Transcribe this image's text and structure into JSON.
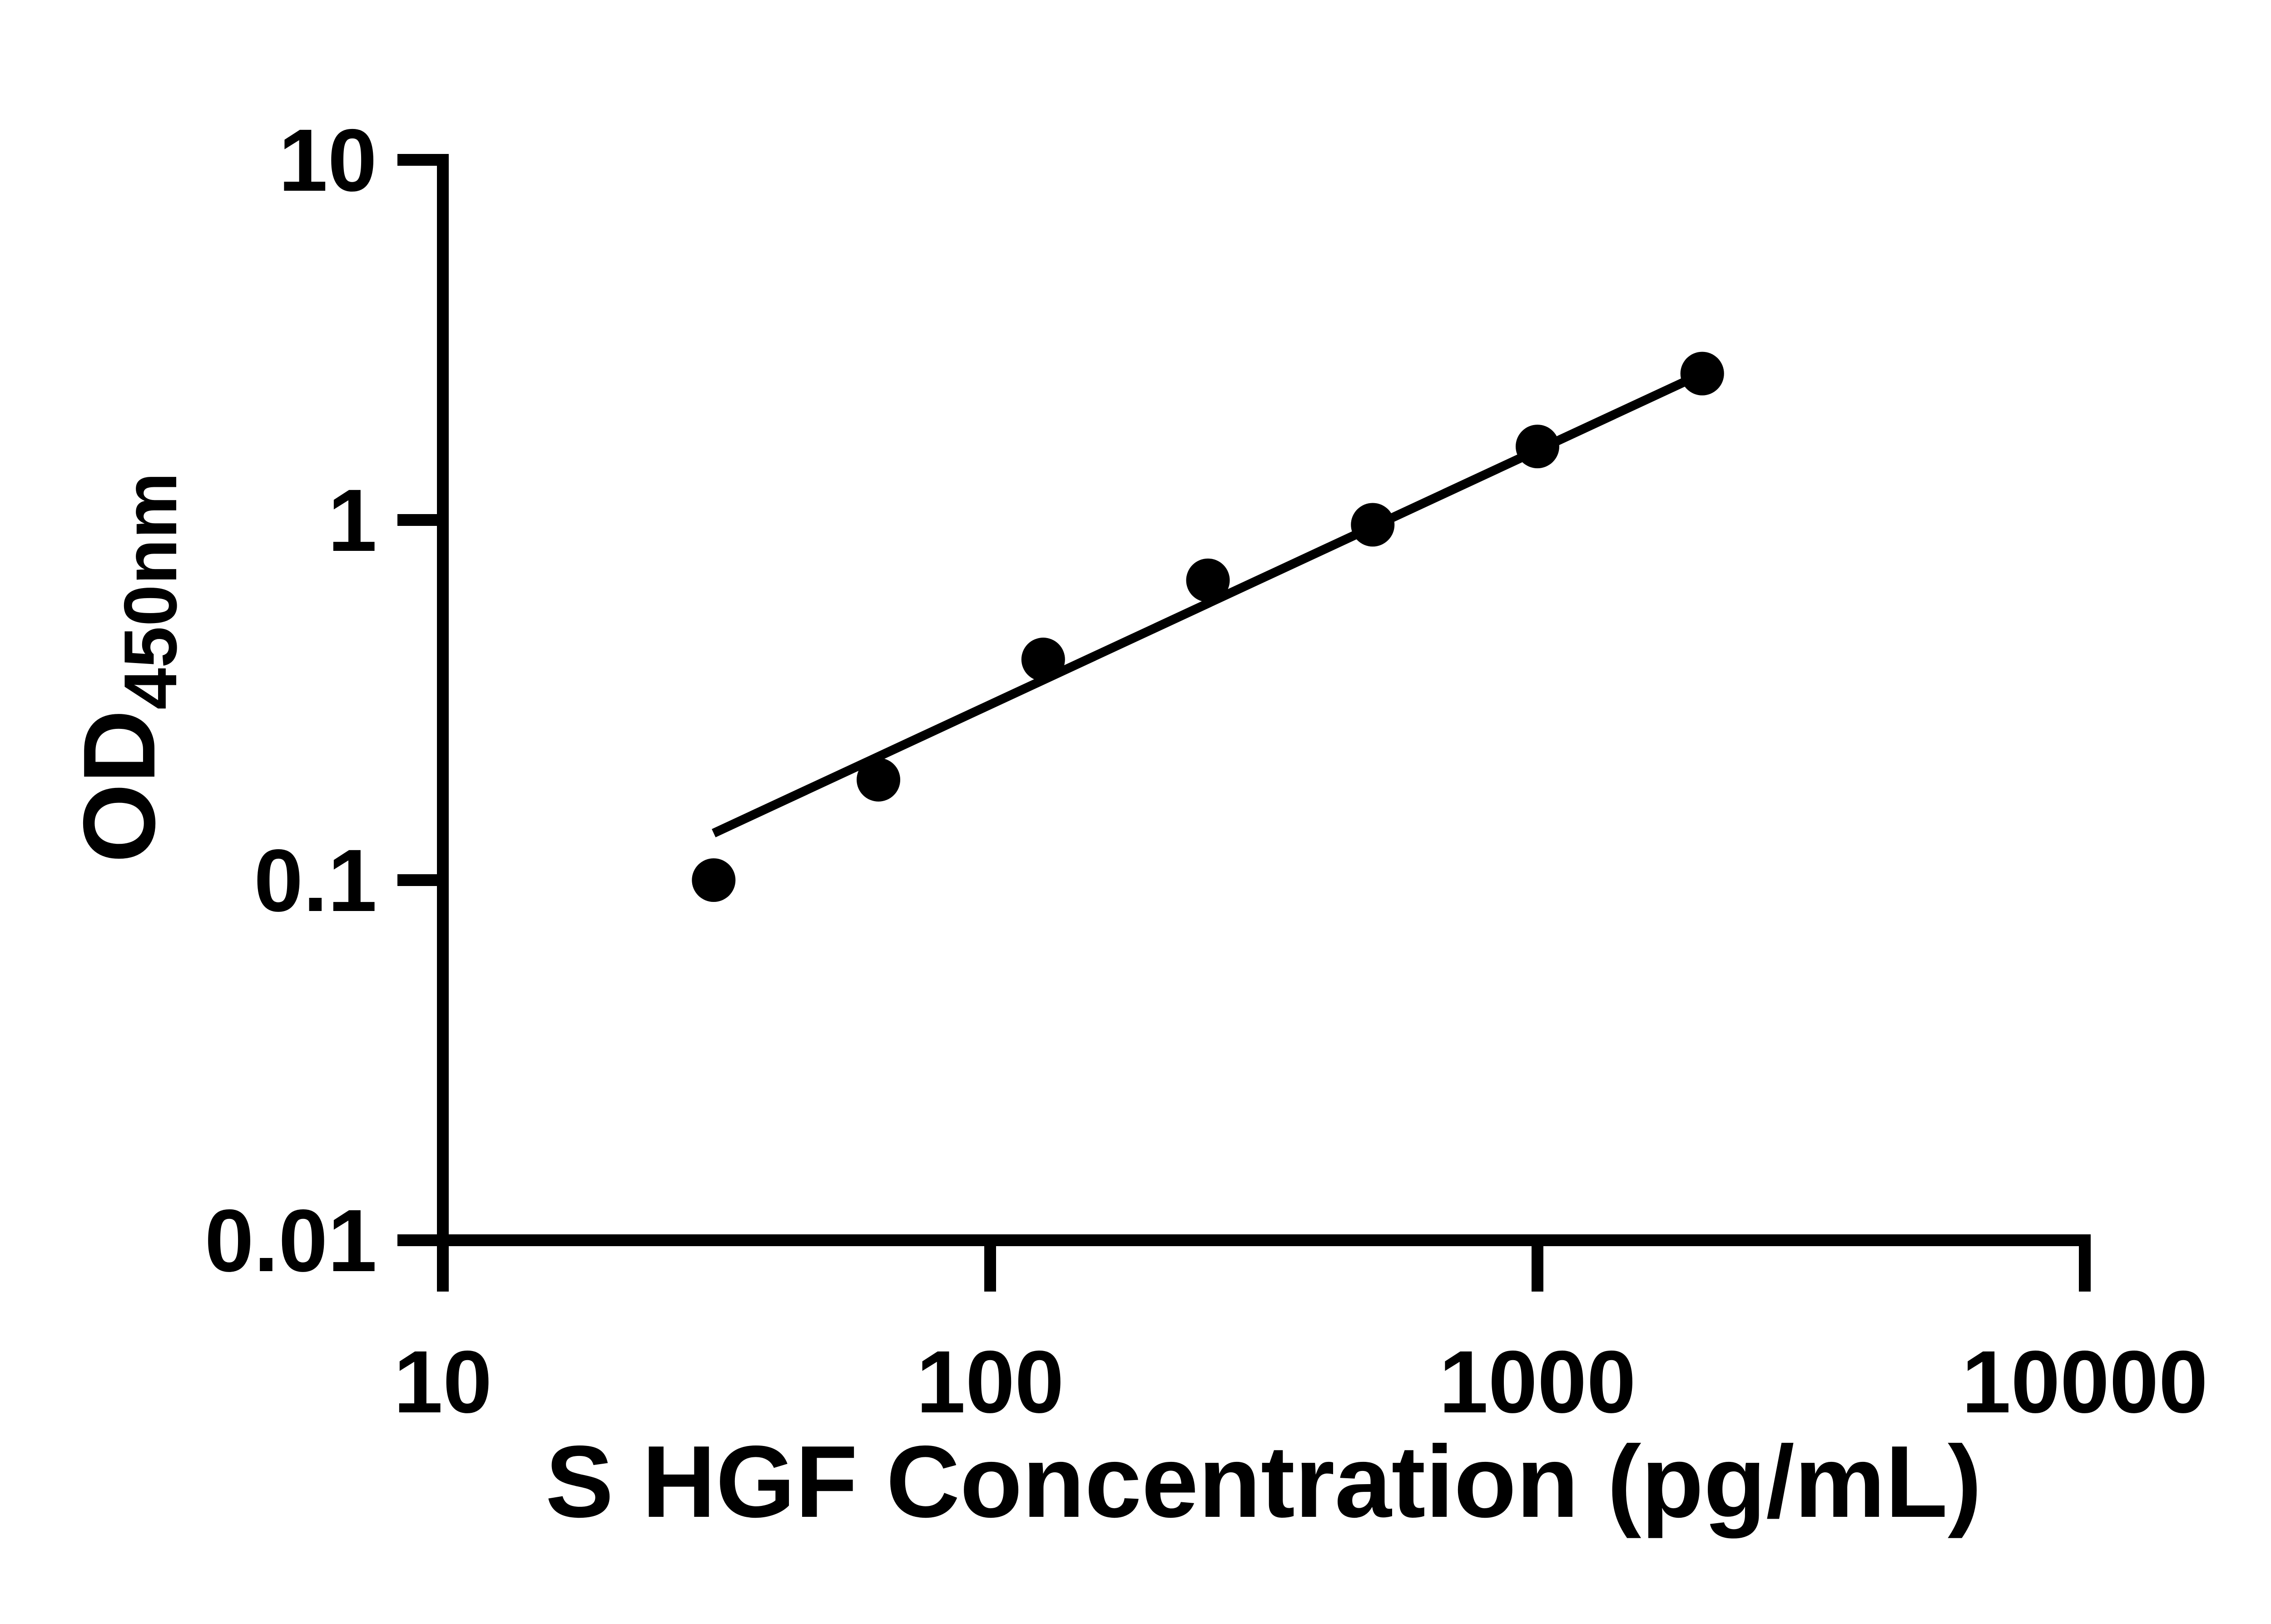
{
  "figure": {
    "background_color": "#ffffff",
    "ink_color": "#000000"
  },
  "chart_data": {
    "type": "scatter",
    "title": "",
    "xlabel": "S HGF Concentration (pg/mL)",
    "ylabel_base": "OD",
    "ylabel_subscript": "450nm",
    "x_scale": "log10",
    "y_scale": "log10",
    "xlim": [
      10,
      10000
    ],
    "ylim": [
      0.01,
      10
    ],
    "x_ticks": [
      10,
      100,
      1000,
      10000
    ],
    "x_tick_labels": [
      "10",
      "100",
      "1000",
      "10000"
    ],
    "y_ticks": [
      10,
      1,
      0.1,
      0.01
    ],
    "y_tick_labels": [
      "10",
      "1",
      "0.1",
      "0.01"
    ],
    "grid": false,
    "legend": null,
    "series": [
      {
        "name": "standard-curve-points",
        "kind": "scatter",
        "marker": "filled-circle",
        "color": "#000000",
        "points": [
          {
            "x": 31.25,
            "y": 0.1
          },
          {
            "x": 62.5,
            "y": 0.19
          },
          {
            "x": 125,
            "y": 0.41
          },
          {
            "x": 250,
            "y": 0.68
          },
          {
            "x": 500,
            "y": 0.97
          },
          {
            "x": 1000,
            "y": 1.6
          },
          {
            "x": 2000,
            "y": 2.55
          }
        ]
      },
      {
        "name": "fit-line",
        "kind": "line",
        "color": "#000000",
        "points": [
          {
            "x": 31.25,
            "y": 0.135
          },
          {
            "x": 2000,
            "y": 2.55
          }
        ]
      }
    ]
  }
}
